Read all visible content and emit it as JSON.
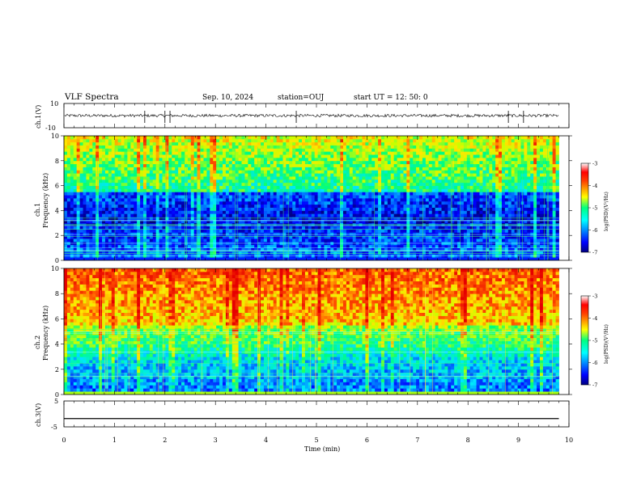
{
  "header": {
    "title": "VLF Spectra",
    "date": "Sep. 10, 2024",
    "station": "station=OUJ",
    "start_ut": "start  UT =   12: 50: 0"
  },
  "chart_data": [
    {
      "type": "line",
      "panel": "ch1_waveform",
      "ylabel": "ch.1(V)",
      "ylim": [
        -10,
        10
      ],
      "yticks": [
        "10",
        "-10"
      ],
      "x": [
        0,
        10
      ],
      "baseline": 0,
      "noise_amplitude": 1.2,
      "spikes_x": [
        1.6,
        2.0,
        2.1,
        4.6,
        8.8,
        9.1
      ],
      "color": "#000000"
    },
    {
      "type": "heatmap",
      "panel": "ch1_spectrogram",
      "ylabel_top": "ch.1",
      "ylabel": "Frequency (kHz)",
      "ylim": [
        0,
        10
      ],
      "yticks": [
        "0",
        "2",
        "4",
        "6",
        "8",
        "10"
      ],
      "x_range_min": [
        0,
        9.8
      ],
      "colorbar": {
        "min": -7,
        "max": -3,
        "ticks": [
          "-3",
          "-4",
          "-5",
          "-6",
          "-7"
        ],
        "label": "log(PSD)(V²/Hz)"
      }
    },
    {
      "type": "heatmap",
      "panel": "ch2_spectrogram",
      "ylabel_top": "ch.2",
      "ylabel": "Frequency (kHz)",
      "ylim": [
        0,
        10
      ],
      "yticks": [
        "0",
        "2",
        "4",
        "6",
        "8",
        "10"
      ],
      "x_range_min": [
        0,
        9.8
      ],
      "colorbar": {
        "min": -7,
        "max": -3,
        "ticks": [
          "-3",
          "-4",
          "-5",
          "-6",
          "-7"
        ],
        "label": "log(PSD)(V²/Hz)"
      }
    },
    {
      "type": "line",
      "panel": "ch3_waveform",
      "ylabel": "ch.3(V)",
      "ylim": [
        -5,
        5
      ],
      "yticks": [
        "5",
        "-5"
      ],
      "x": [
        0,
        9.8
      ],
      "y": [
        -1.8,
        -1.8
      ],
      "color": "#000000"
    }
  ],
  "x_axis": {
    "label": "Time (min)",
    "range": [
      0,
      10
    ],
    "ticks": [
      "0",
      "1",
      "2",
      "3",
      "4",
      "5",
      "6",
      "7",
      "8",
      "9",
      "10"
    ]
  }
}
